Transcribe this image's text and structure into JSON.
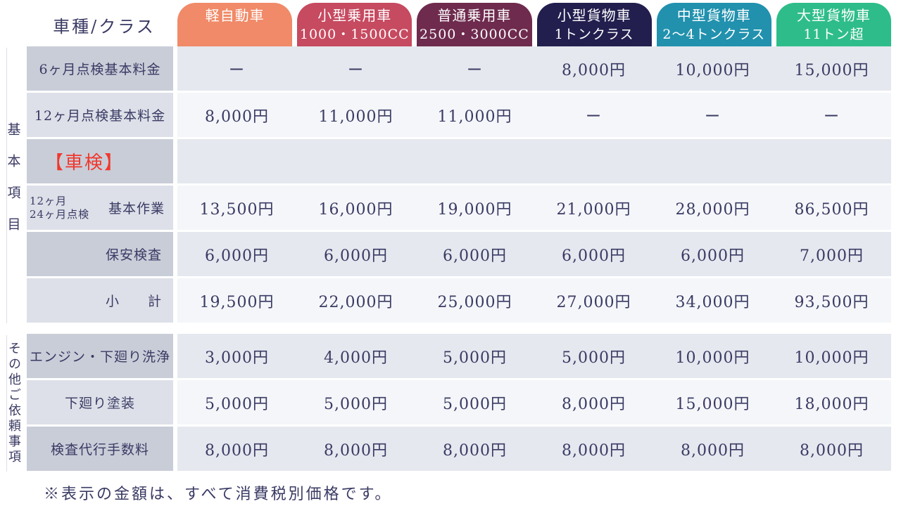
{
  "header": {
    "corner_label": "車種/クラス",
    "columns": [
      {
        "label": "軽自動車",
        "sub": "",
        "color": "#f08a68"
      },
      {
        "label": "小型乗用車",
        "sub": "1000・1500CC",
        "color": "#c64a60"
      },
      {
        "label": "普通乗用車",
        "sub": "2500・3000CC",
        "color": "#6e2b4e"
      },
      {
        "label": "小型貨物車",
        "sub": "1トンクラス",
        "color": "#221f4f"
      },
      {
        "label": "中型貨物車",
        "sub": "2〜4トンクラス",
        "color": "#2191ae"
      },
      {
        "label": "大型貨物車",
        "sub": "11トン超",
        "color": "#2ebd8a"
      }
    ]
  },
  "groups": [
    {
      "name": "基本項目",
      "rows": [
        {
          "label": "6ヶ月点検基本料金",
          "shade": "dark",
          "align": "center",
          "values": [
            "ー",
            "ー",
            "ー",
            "8,000円",
            "10,000円",
            "15,000円"
          ]
        },
        {
          "label": "12ヶ月点検基本料金",
          "shade": "light",
          "align": "center",
          "values": [
            "8,000円",
            "11,000円",
            "11,000円",
            "ー",
            "ー",
            "ー"
          ]
        },
        {
          "label": "【車検】",
          "shade": "dark",
          "align": "left",
          "style": "red-heading",
          "values": [
            "",
            "",
            "",
            "",
            "",
            ""
          ]
        },
        {
          "label": "基本作業",
          "sublabel": "12ヶ月\n24ヶ月点検",
          "shade": "light",
          "align": "split",
          "values": [
            "13,500円",
            "16,000円",
            "19,000円",
            "21,000円",
            "28,000円",
            "86,500円"
          ]
        },
        {
          "label": "保安検査",
          "shade": "dark",
          "align": "right",
          "values": [
            "6,000円",
            "6,000円",
            "6,000円",
            "6,000円",
            "6,000円",
            "7,000円"
          ]
        },
        {
          "label": "小　　計",
          "shade": "light",
          "align": "right",
          "values": [
            "19,500円",
            "22,000円",
            "25,000円",
            "27,000円",
            "34,000円",
            "93,500円"
          ]
        }
      ]
    },
    {
      "name": "その他ご依頼事項",
      "rows": [
        {
          "label": "エンジン・下廻り洗浄",
          "shade": "dark",
          "align": "center",
          "values": [
            "3,000円",
            "4,000円",
            "5,000円",
            "5,000円",
            "10,000円",
            "10,000円"
          ]
        },
        {
          "label": "下廻り塗装",
          "shade": "light",
          "align": "center",
          "values": [
            "5,000円",
            "5,000円",
            "5,000円",
            "8,000円",
            "15,000円",
            "18,000円"
          ]
        },
        {
          "label": "検査代行手数料",
          "shade": "dark",
          "align": "center",
          "values": [
            "8,000円",
            "8,000円",
            "8,000円",
            "8,000円",
            "8,000円",
            "8,000円"
          ]
        }
      ]
    }
  ],
  "footnote": "※表示の金額は、すべて消費税別価格です。",
  "colors": {
    "text": "#3a3a64",
    "accent_red": "#f0382c",
    "label_dark": "#c9cdd8",
    "label_light": "#dde0e8",
    "cell_dark": "#e5e8ee",
    "cell_light": "#f4f6f9"
  }
}
